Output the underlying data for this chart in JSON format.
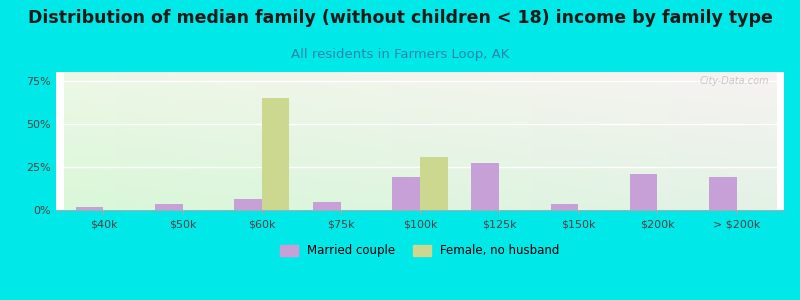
{
  "title": "Distribution of median family (without children < 18) income by family type",
  "subtitle": "All residents in Farmers Loop, AK",
  "categories": [
    "$40k",
    "$50k",
    "$60k",
    "$75k",
    "$100k",
    "$125k",
    "$150k",
    "$200k",
    "> $200k"
  ],
  "married_couple": [
    2.0,
    3.5,
    6.5,
    4.5,
    19.0,
    27.0,
    3.5,
    21.0,
    19.0
  ],
  "female_no_husband": [
    0.0,
    0.0,
    65.0,
    0.0,
    31.0,
    0.0,
    0.0,
    0.0,
    0.0
  ],
  "married_color": "#c8a0d8",
  "female_color": "#ccd890",
  "bg_outer": "#00e8e8",
  "ylim": [
    0,
    80
  ],
  "yticks": [
    0,
    25,
    50,
    75
  ],
  "ytick_labels": [
    "0%",
    "25%",
    "50%",
    "75%"
  ],
  "bar_width": 0.35,
  "title_fontsize": 12.5,
  "subtitle_fontsize": 9.5,
  "watermark": "City-Data.com"
}
